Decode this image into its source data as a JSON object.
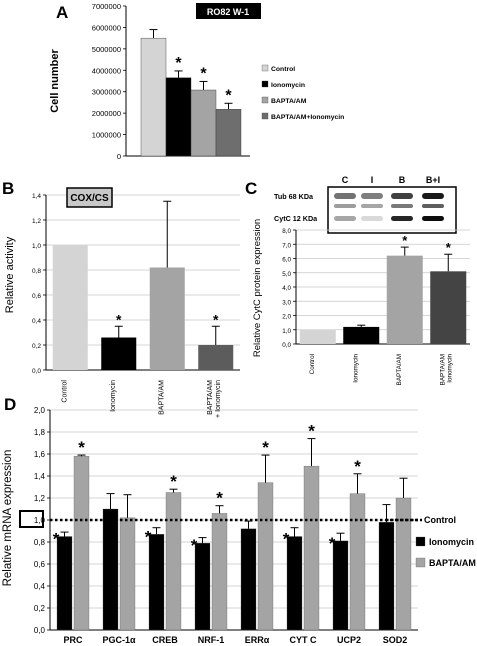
{
  "chart_data": [
    {
      "panel": "A",
      "type": "bar",
      "title": "RO82 W-1",
      "ylabel": "Cell number",
      "ylim": [
        0,
        7000000
      ],
      "ytick_labels": [
        "0",
        "1000000",
        "2000000",
        "3000000",
        "4000000",
        "5000000",
        "6000000",
        "7000000"
      ],
      "legend_position": "right",
      "series": [
        {
          "name": "Control",
          "value": 5500000,
          "error": 400000,
          "star": false,
          "color": "#d4d4d4"
        },
        {
          "name": "Ionomycin",
          "value": 3650000,
          "error": 320000,
          "star": true,
          "color": "#000000"
        },
        {
          "name": "BAPTA/AM",
          "value": 3080000,
          "error": 400000,
          "star": true,
          "color": "#a4a4a4"
        },
        {
          "name": "BAPTA/AM+Ionomycin",
          "value": 2180000,
          "error": 280000,
          "star": true,
          "color": "#6e6e6e"
        }
      ]
    },
    {
      "panel": "B",
      "type": "bar",
      "title": "COX/CS",
      "ylabel": "Relative activity",
      "ylim": [
        0,
        1.4
      ],
      "ytick_labels": [
        "0,0",
        "0,2",
        "0,4",
        "0,6",
        "0,8",
        "1,0",
        "1,2",
        "1,4"
      ],
      "categories": [
        "Control",
        "Ionomycin",
        "BAPTA/AM",
        "BAPTA/AM\n+ Ionomycin"
      ],
      "values": [
        1.0,
        0.26,
        0.82,
        0.2
      ],
      "errors": [
        0,
        0.09,
        0.53,
        0.15
      ],
      "stars": [
        false,
        true,
        false,
        true
      ],
      "colors": [
        "#d4d4d4",
        "#000000",
        "#a4a4a4",
        "#5c5c5c"
      ]
    },
    {
      "panel": "C",
      "type": "bar",
      "ylabel": "Relative  CytC protein expression",
      "ylim": [
        0,
        8.0
      ],
      "ytick_labels": [
        "0,0",
        "1,0",
        "2,0",
        "3,0",
        "4,0",
        "5,0",
        "6,0",
        "7,0",
        "8,0"
      ],
      "categories": [
        "Control",
        "Ionomycin",
        "BAPTA/AM",
        "BAPTA/AM\nIonomycin"
      ],
      "values": [
        1.0,
        1.2,
        6.2,
        5.1
      ],
      "errors": [
        0,
        0.12,
        0.6,
        1.2
      ],
      "stars": [
        false,
        false,
        true,
        true
      ],
      "colors": [
        "#d4d4d4",
        "#000000",
        "#a4a4a4",
        "#444444"
      ],
      "blot": {
        "lane_labels": [
          "C",
          "I",
          "B",
          "B+I"
        ],
        "band_labels": [
          "Tub 68 KDa",
          "CytC 12 KDa"
        ]
      }
    },
    {
      "panel": "D",
      "type": "bar",
      "ylabel": "Relative mRNA expression",
      "ylim": [
        0,
        2.0
      ],
      "ytick_labels": [
        "0,0",
        "0,2",
        "0,4",
        "0,6",
        "0,8",
        "1,0",
        "1,2",
        "1,4",
        "1,6",
        "1,8",
        "2,0"
      ],
      "categories": [
        "PRC",
        "PGC-1α",
        "CREB",
        "NRF-1",
        "ERRα",
        "CYT C",
        "UCP2",
        "SOD2"
      ],
      "reference_line": {
        "value": 1.0,
        "label": "Control"
      },
      "series": [
        {
          "name": "Ionomycin",
          "color": "#000000",
          "values": [
            0.85,
            1.1,
            0.87,
            0.79,
            0.92,
            0.85,
            0.81,
            0.98
          ],
          "errors": [
            0.04,
            0.14,
            0.06,
            0.05,
            0.07,
            0.08,
            0.07,
            0.16
          ],
          "stars": [
            true,
            false,
            true,
            true,
            false,
            true,
            true,
            false
          ]
        },
        {
          "name": "BAPTA/AM",
          "color": "#a4a4a4",
          "values": [
            1.58,
            1.02,
            1.25,
            1.06,
            1.34,
            1.49,
            1.24,
            1.2
          ],
          "errors": [
            0.01,
            0.21,
            0.03,
            0.07,
            0.25,
            0.25,
            0.18,
            0.18
          ],
          "stars": [
            true,
            false,
            true,
            true,
            true,
            true,
            true,
            false
          ]
        }
      ]
    }
  ]
}
